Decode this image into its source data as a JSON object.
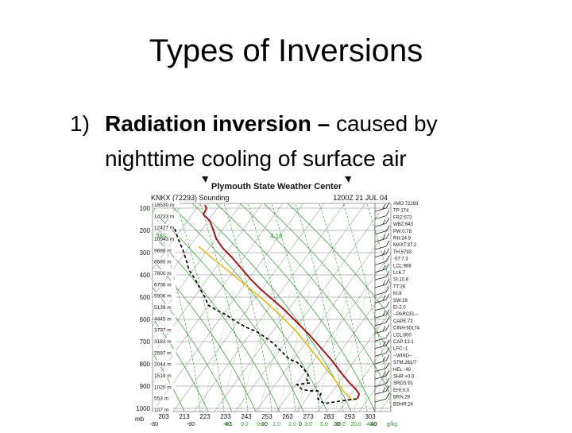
{
  "slide": {
    "title": "Types of Inversions",
    "bullet": {
      "number": "1)",
      "term": "Radiation inversion",
      "dash": "–",
      "rest": "caused by",
      "line2": "nighttime cooling of surface air"
    }
  },
  "sounding": {
    "header": "Plymouth State Weather Center",
    "station": "KNKX (72293) Sounding",
    "time": "1200Z 21 JUL 04",
    "pressure_labels": [
      "100",
      "200",
      "300",
      "400",
      "500",
      "600",
      "700",
      "800",
      "900",
      "1000"
    ],
    "pressure_unit": "mb",
    "height_labels": [
      "16530 m",
      "14233 m",
      "12427 m",
      "10943 m",
      "9686 m",
      "8580 m",
      "7600 m",
      "6706 m",
      "5906 m",
      "5139 m",
      "4445 m",
      "3797 m",
      "3183 m",
      "2597 m",
      "2044 m",
      "1519 m",
      "1020 m",
      "553 m",
      "107 m"
    ],
    "temp_k_labels": [
      "203",
      "213",
      "223",
      "233",
      "243",
      "253",
      "263",
      "273",
      "283",
      "293",
      "303"
    ],
    "temp_c_labels": [
      "-80",
      "-60",
      "-40",
      "-20",
      "0",
      "20",
      "40"
    ],
    "mixing_ratio_labels": [
      "0.1",
      "0.2",
      "0.6",
      "1.0",
      "2.0",
      "3.0",
      "5.0",
      "10.0",
      "20.0",
      "40.0"
    ],
    "mixing_ratio_unit": "g/kg",
    "green_labels": [
      "385",
      "4.16"
    ],
    "indices": [
      "#MO:72293",
      "TP:174",
      "FRZ:572",
      "WBZ:643",
      "PW:0.78",
      "RH:24.9",
      "MAXT:37.2",
      "TH:5793",
      "-57:7.3",
      "LCL:966",
      "LI:6.7",
      "SI:10.8",
      "TT:28",
      "KI:6",
      "SW:29",
      "EI:2.0",
      "--PARCEL--",
      "CAPE:72",
      "CINH:60174",
      "LCL:800",
      "CAP:13.1",
      "LFC:-1",
      "--WIND--",
      "STM:261/7",
      "HEL:-49",
      "SHR:+0.0",
      "SRDS:91",
      "EHI:0.0",
      "BRN:29",
      "BSHR:24"
    ],
    "colors": {
      "temperature": "#a01818",
      "dewpoint": "#000000",
      "parcel": "#e8b820",
      "dry_adiabat": "#2a9a2a",
      "moist_adiabat": "#2a9a2a",
      "mixing_ratio": "#2a9a2a",
      "isobar": "#555555",
      "isotherm": "#555555"
    }
  }
}
